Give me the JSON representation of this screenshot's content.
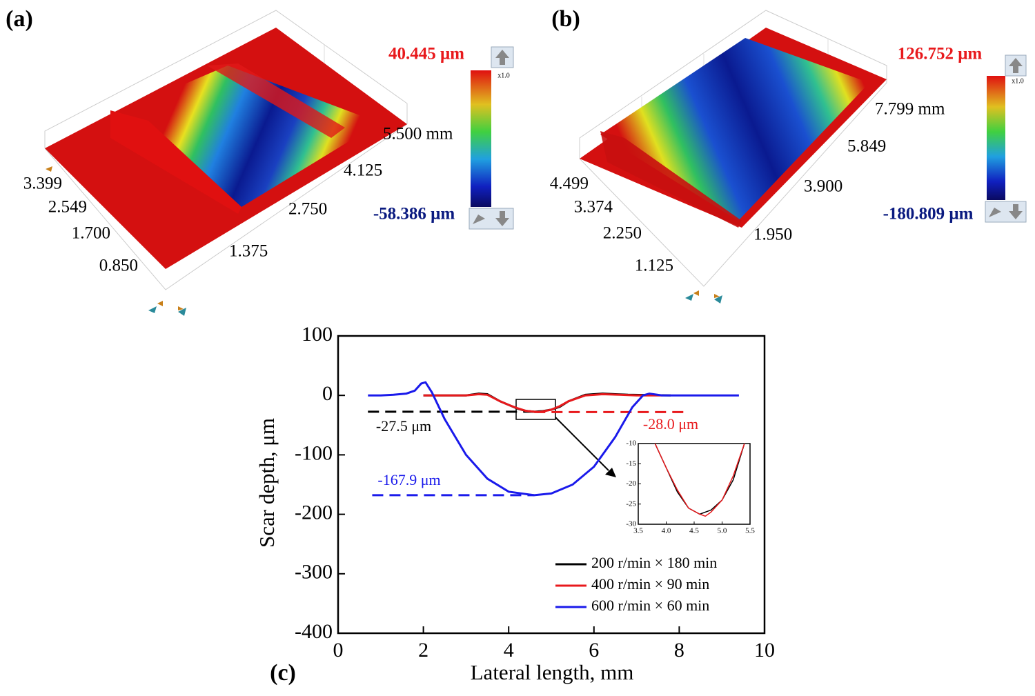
{
  "surface_plots": [
    {
      "label": "(a)",
      "max": "40.445 μm",
      "min": "-58.386 μm",
      "scale": "x1.0",
      "left_axis": [
        "3.399",
        "2.549",
        "1.700",
        "0.850"
      ],
      "right_axis": [
        "5.500 mm",
        "4.125",
        "2.750",
        "1.375"
      ]
    },
    {
      "label": "(b)",
      "max": "126.752 μm",
      "min": "-180.809 μm",
      "scale": "x1.0",
      "left_axis": [
        "4.499",
        "3.374",
        "2.250",
        "1.125"
      ],
      "right_axis": [
        "7.799 mm",
        "5.849",
        "3.900",
        "1.950"
      ]
    }
  ],
  "chart_data": {
    "type": "line",
    "panel_label": "(c)",
    "xlabel": "Lateral length, mm",
    "ylabel": "Scar depth, μm",
    "xlim": [
      0,
      10
    ],
    "xticks": [
      0,
      2,
      4,
      6,
      8,
      10
    ],
    "ylim": [
      -400,
      100
    ],
    "yticks": [
      -400,
      -300,
      -200,
      -100,
      0,
      100
    ],
    "series": [
      {
        "name": "200 r/min × 180 min",
        "color": "#000000",
        "x": [
          2.0,
          3.0,
          3.3,
          3.5,
          3.8,
          4.0,
          4.2,
          4.4,
          4.6,
          4.8,
          5.0,
          5.2,
          5.4,
          5.8,
          6.2,
          6.8,
          7.8
        ],
        "values": [
          0,
          0,
          3,
          2,
          -10,
          -16,
          -22,
          -26,
          -27.5,
          -26.5,
          -24,
          -19,
          -10,
          1,
          3,
          1,
          0
        ]
      },
      {
        "name": "400 r/min × 90 min",
        "color": "#e8191c",
        "x": [
          2.0,
          3.0,
          3.3,
          3.5,
          3.8,
          4.0,
          4.2,
          4.4,
          4.6,
          4.7,
          4.8,
          5.0,
          5.2,
          5.4,
          5.8,
          6.2,
          6.6,
          7.0,
          7.6
        ],
        "values": [
          0,
          0,
          2,
          1,
          -10,
          -16,
          -21.5,
          -26,
          -27.5,
          -28,
          -27,
          -24,
          -18,
          -10,
          0,
          2,
          1,
          0,
          0
        ]
      },
      {
        "name": "600 r/min × 60 min",
        "color": "#1a1aeb",
        "x": [
          0.7,
          1.0,
          1.3,
          1.6,
          1.8,
          1.95,
          2.05,
          2.2,
          2.5,
          3.0,
          3.5,
          4.0,
          4.6,
          5.0,
          5.5,
          6.0,
          6.5,
          6.9,
          7.15,
          7.3,
          7.6,
          8.0,
          9.4
        ],
        "values": [
          0,
          0,
          1,
          3,
          8,
          20,
          22,
          5,
          -40,
          -100,
          -140,
          -162,
          -167.9,
          -165,
          -150,
          -120,
          -70,
          -20,
          0,
          3,
          0,
          0,
          0
        ]
      }
    ],
    "reference_lines": [
      {
        "label": "-27.5 μm",
        "value": -27.5,
        "x": [
          0.7,
          4.6
        ],
        "color": "#000000"
      },
      {
        "label": "-28.0 μm",
        "value": -28.0,
        "x": [
          4.6,
          8.1
        ],
        "color": "#e8191c"
      },
      {
        "label": "-167.9 μm",
        "value": -167.9,
        "x": [
          0.8,
          4.6
        ],
        "color": "#1a1aeb"
      }
    ],
    "inset": {
      "xlim": [
        3.5,
        5.5
      ],
      "ylim": [
        -30,
        -10
      ],
      "xticks": [
        {
          "value": 3.5,
          "label": "3.5"
        },
        {
          "value": 4,
          "label": "4.0"
        },
        {
          "value": 4.5,
          "label": "4.5"
        },
        {
          "value": 5,
          "label": "5.0"
        },
        {
          "value": 5.5,
          "label": "5.5"
        }
      ],
      "yticks": [
        -30,
        -25,
        -20,
        -15,
        -10
      ]
    },
    "legend": "lower right"
  }
}
